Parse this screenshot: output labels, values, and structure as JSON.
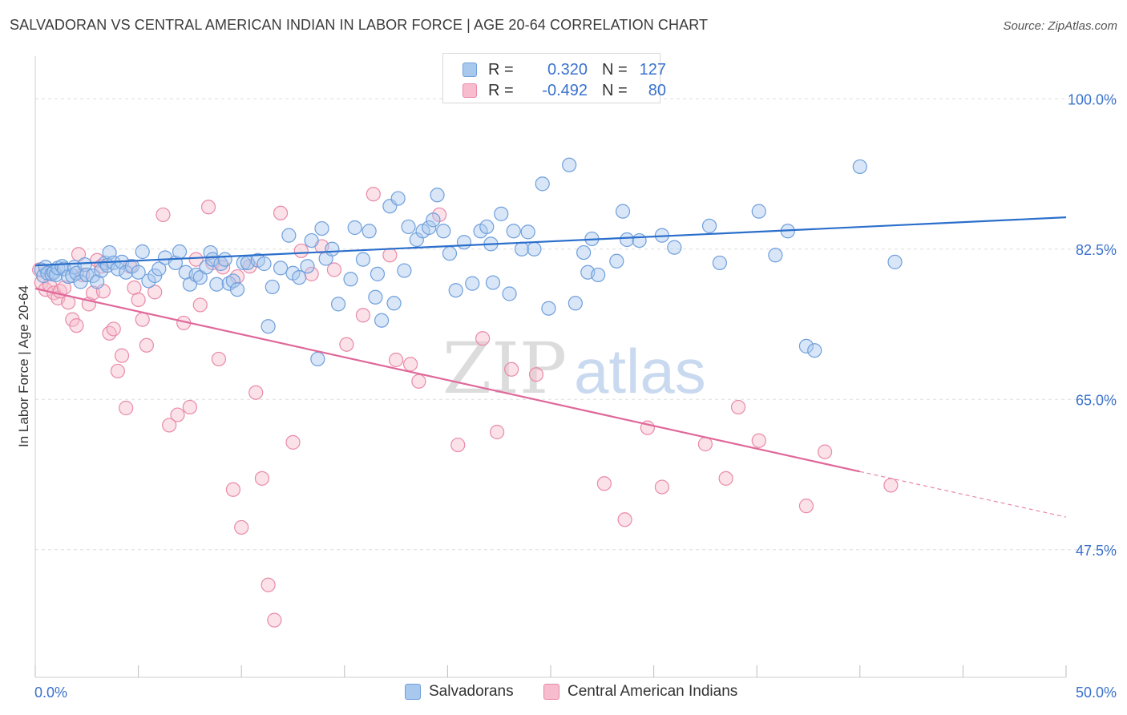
{
  "title": "SALVADORAN VS CENTRAL AMERICAN INDIAN IN LABOR FORCE | AGE 20-64 CORRELATION CHART",
  "source": "Source: ZipAtlas.com",
  "watermark": "ZIPatlas",
  "colors": {
    "blue_fill": "#a9c8ee",
    "blue_stroke": "#6f9fdc",
    "blue_line": "#2b6fcb",
    "pink_fill": "#f7bccd",
    "pink_stroke": "#e98aa9",
    "pink_line": "#e0689a",
    "tick_label": "#3a72cc"
  },
  "legend_top": {
    "rows": [
      {
        "series": "blue",
        "r_label": "R =",
        "r_value": "0.320",
        "n_label": "N =",
        "n_value": "127"
      },
      {
        "series": "pink",
        "r_label": "R =",
        "r_value": "-0.492",
        "n_label": "N =",
        "n_value": "80"
      }
    ]
  },
  "legend_bottom": {
    "items": [
      {
        "series": "blue",
        "label": "Salvadorans"
      },
      {
        "series": "pink",
        "label": "Central American Indians"
      }
    ]
  },
  "chart_data": {
    "type": "scatter",
    "title": "SALVADORAN VS CENTRAL AMERICAN INDIAN IN LABOR FORCE | AGE 20-64 CORRELATION CHART",
    "xlabel": "",
    "ylabel": "In Labor Force | Age 20-64",
    "xlim": [
      0,
      50
    ],
    "ylim": [
      32.5,
      102.5
    ],
    "x_tick_labels": [
      "0.0%",
      "50.0%"
    ],
    "y_ticks": [
      47.5,
      65.0,
      82.5,
      100.0
    ],
    "y_tick_labels": [
      "47.5%",
      "65.0%",
      "82.5%",
      "100.0%"
    ],
    "grid": true,
    "legend_placement": "top-center",
    "series": [
      {
        "name": "Salvadorans",
        "color": "blue",
        "trend": {
          "x": [
            0,
            50
          ],
          "y": [
            80.6,
            86.2
          ]
        },
        "points": [
          [
            0.3,
            80.1
          ],
          [
            0.4,
            79.4
          ],
          [
            0.5,
            80.4
          ],
          [
            0.6,
            79.7
          ],
          [
            0.8,
            79.6
          ],
          [
            0.9,
            79.8
          ],
          [
            1.0,
            79.5
          ],
          [
            1.1,
            80.3
          ],
          [
            1.3,
            80.5
          ],
          [
            1.4,
            80.2
          ],
          [
            1.6,
            79.3
          ],
          [
            1.8,
            79.4
          ],
          [
            1.9,
            80.4
          ],
          [
            2.0,
            79.7
          ],
          [
            2.2,
            78.7
          ],
          [
            2.4,
            80.7
          ],
          [
            2.5,
            79.5
          ],
          [
            2.8,
            79.4
          ],
          [
            3.0,
            78.7
          ],
          [
            3.2,
            80.0
          ],
          [
            3.4,
            80.9
          ],
          [
            3.5,
            80.6
          ],
          [
            3.6,
            82.1
          ],
          [
            3.8,
            80.9
          ],
          [
            4.0,
            80.2
          ],
          [
            4.2,
            81.0
          ],
          [
            4.4,
            79.8
          ],
          [
            4.7,
            80.5
          ],
          [
            5.0,
            79.8
          ],
          [
            5.2,
            82.2
          ],
          [
            5.5,
            78.8
          ],
          [
            5.8,
            79.4
          ],
          [
            6.0,
            80.2
          ],
          [
            6.3,
            81.5
          ],
          [
            6.8,
            80.9
          ],
          [
            7.0,
            82.2
          ],
          [
            7.3,
            79.8
          ],
          [
            7.5,
            78.4
          ],
          [
            7.8,
            79.5
          ],
          [
            8.0,
            79.2
          ],
          [
            8.3,
            80.4
          ],
          [
            8.5,
            82.1
          ],
          [
            8.6,
            81.3
          ],
          [
            8.8,
            78.4
          ],
          [
            9.0,
            80.8
          ],
          [
            9.2,
            81.3
          ],
          [
            9.4,
            78.5
          ],
          [
            9.6,
            78.8
          ],
          [
            9.8,
            77.8
          ],
          [
            10.1,
            80.9
          ],
          [
            10.3,
            80.9
          ],
          [
            10.8,
            81.2
          ],
          [
            11.1,
            80.8
          ],
          [
            11.3,
            73.5
          ],
          [
            11.5,
            78.1
          ],
          [
            11.9,
            80.3
          ],
          [
            12.3,
            84.1
          ],
          [
            12.5,
            79.7
          ],
          [
            12.8,
            79.2
          ],
          [
            13.2,
            80.5
          ],
          [
            13.4,
            83.5
          ],
          [
            13.7,
            69.7
          ],
          [
            13.9,
            84.9
          ],
          [
            14.1,
            81.4
          ],
          [
            14.4,
            82.5
          ],
          [
            14.7,
            76.1
          ],
          [
            15.3,
            79.0
          ],
          [
            15.5,
            85.0
          ],
          [
            15.9,
            81.3
          ],
          [
            16.2,
            84.6
          ],
          [
            16.5,
            76.9
          ],
          [
            16.6,
            79.6
          ],
          [
            16.8,
            74.2
          ],
          [
            17.2,
            87.5
          ],
          [
            17.4,
            76.2
          ],
          [
            17.6,
            88.4
          ],
          [
            17.9,
            80.0
          ],
          [
            18.1,
            85.1
          ],
          [
            18.5,
            83.6
          ],
          [
            18.8,
            84.6
          ],
          [
            19.1,
            85.0
          ],
          [
            19.3,
            85.9
          ],
          [
            19.5,
            88.8
          ],
          [
            19.8,
            84.6
          ],
          [
            20.1,
            82.0
          ],
          [
            20.4,
            77.7
          ],
          [
            20.8,
            83.3
          ],
          [
            21.2,
            78.5
          ],
          [
            21.6,
            84.6
          ],
          [
            21.9,
            85.1
          ],
          [
            22.1,
            83.1
          ],
          [
            22.2,
            78.6
          ],
          [
            22.6,
            86.6
          ],
          [
            23.0,
            77.3
          ],
          [
            23.2,
            84.6
          ],
          [
            23.6,
            82.5
          ],
          [
            23.9,
            84.5
          ],
          [
            24.2,
            82.5
          ],
          [
            24.6,
            90.1
          ],
          [
            24.9,
            75.6
          ],
          [
            25.9,
            92.3
          ],
          [
            26.2,
            76.2
          ],
          [
            26.6,
            82.1
          ],
          [
            26.8,
            79.8
          ],
          [
            27.0,
            83.7
          ],
          [
            27.3,
            79.5
          ],
          [
            28.2,
            81.1
          ],
          [
            28.5,
            86.9
          ],
          [
            28.7,
            83.6
          ],
          [
            29.3,
            83.5
          ],
          [
            30.4,
            84.1
          ],
          [
            31.0,
            82.7
          ],
          [
            32.7,
            85.2
          ],
          [
            33.2,
            80.9
          ],
          [
            35.1,
            86.9
          ],
          [
            35.9,
            81.8
          ],
          [
            36.5,
            84.6
          ],
          [
            37.4,
            71.2
          ],
          [
            37.8,
            70.7
          ],
          [
            40.0,
            92.1
          ],
          [
            41.7,
            81.0
          ]
        ]
      },
      {
        "name": "Central American Indians",
        "color": "pink",
        "trend": {
          "x": [
            0,
            40
          ],
          "y": [
            77.9,
            56.6
          ],
          "dashed_extension": {
            "x": [
              40,
              50
            ],
            "y": [
              56.6,
              51.3
            ]
          }
        },
        "points": [
          [
            0.2,
            80.1
          ],
          [
            0.3,
            78.6
          ],
          [
            0.5,
            77.8
          ],
          [
            0.7,
            78.3
          ],
          [
            0.9,
            77.4
          ],
          [
            1.1,
            76.8
          ],
          [
            1.2,
            77.6
          ],
          [
            1.4,
            78.0
          ],
          [
            1.6,
            76.3
          ],
          [
            1.8,
            74.3
          ],
          [
            2.0,
            73.6
          ],
          [
            2.1,
            81.9
          ],
          [
            2.3,
            79.5
          ],
          [
            2.6,
            76.1
          ],
          [
            2.8,
            77.4
          ],
          [
            3.0,
            81.2
          ],
          [
            3.2,
            80.5
          ],
          [
            3.3,
            77.6
          ],
          [
            3.6,
            72.7
          ],
          [
            3.8,
            73.2
          ],
          [
            4.0,
            68.3
          ],
          [
            4.2,
            70.1
          ],
          [
            4.4,
            64.0
          ],
          [
            4.6,
            80.5
          ],
          [
            4.8,
            78.0
          ],
          [
            5.0,
            76.6
          ],
          [
            5.2,
            74.3
          ],
          [
            5.4,
            71.3
          ],
          [
            5.8,
            77.5
          ],
          [
            6.2,
            86.5
          ],
          [
            6.5,
            62.0
          ],
          [
            6.9,
            63.2
          ],
          [
            7.2,
            73.9
          ],
          [
            7.5,
            64.1
          ],
          [
            7.8,
            81.3
          ],
          [
            8.0,
            76.0
          ],
          [
            8.4,
            87.4
          ],
          [
            8.6,
            80.9
          ],
          [
            8.9,
            69.7
          ],
          [
            9.1,
            80.4
          ],
          [
            9.6,
            54.5
          ],
          [
            9.8,
            79.3
          ],
          [
            10.0,
            50.1
          ],
          [
            10.4,
            80.5
          ],
          [
            10.7,
            65.8
          ],
          [
            11.0,
            55.8
          ],
          [
            11.3,
            43.4
          ],
          [
            11.6,
            39.3
          ],
          [
            11.9,
            86.7
          ],
          [
            12.5,
            60.0
          ],
          [
            12.9,
            82.3
          ],
          [
            13.4,
            79.6
          ],
          [
            13.9,
            82.8
          ],
          [
            14.5,
            80.1
          ],
          [
            15.1,
            71.4
          ],
          [
            15.9,
            74.8
          ],
          [
            16.4,
            88.9
          ],
          [
            17.2,
            81.8
          ],
          [
            17.5,
            69.6
          ],
          [
            18.2,
            69.1
          ],
          [
            18.6,
            67.1
          ],
          [
            19.6,
            86.5
          ],
          [
            20.5,
            59.7
          ],
          [
            21.7,
            72.1
          ],
          [
            22.4,
            61.2
          ],
          [
            23.1,
            68.5
          ],
          [
            24.3,
            67.9
          ],
          [
            27.6,
            55.2
          ],
          [
            28.6,
            51.0
          ],
          [
            29.7,
            61.7
          ],
          [
            30.4,
            54.8
          ],
          [
            32.5,
            59.8
          ],
          [
            33.5,
            55.8
          ],
          [
            34.1,
            64.1
          ],
          [
            35.1,
            60.2
          ],
          [
            37.4,
            52.6
          ],
          [
            38.3,
            58.9
          ],
          [
            41.5,
            55.0
          ]
        ]
      }
    ]
  }
}
